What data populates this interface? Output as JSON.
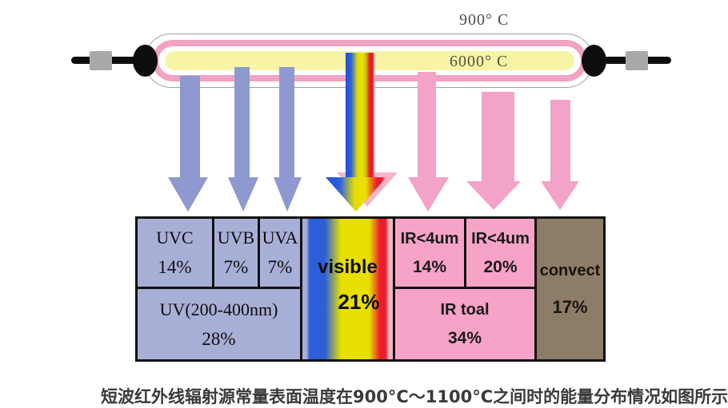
{
  "lamp": {
    "outer_temp": "900° C",
    "core_temp": "6000° C",
    "colors": {
      "envelope_pink": "#f2a2c4",
      "core_yellow": "#f8f4a6",
      "outline_gray": "#a0a0a0",
      "electrode_black": "#0d0d0d",
      "connector_gray": "#a9a9a9"
    }
  },
  "arrows": {
    "uv_color": "#8e99cf",
    "ir_color": "#f2a3c7",
    "visible_gradient": [
      "#2050d5",
      "#e8e100",
      "#ee1b2d",
      "#f4b6c6"
    ]
  },
  "table": {
    "uvc": {
      "label": "UVC",
      "value": "14%"
    },
    "uvb": {
      "label": "UVB",
      "value": "7%"
    },
    "uva": {
      "label": "UVA",
      "value": "7%"
    },
    "uv_total": {
      "label": "UV(200-400nm)",
      "value": "28%"
    },
    "visible": {
      "label": "visible",
      "value": "21%"
    },
    "ir_a": {
      "label": "IR<4um",
      "value": "14%"
    },
    "ir_b": {
      "label": "IR<4um",
      "value": "20%"
    },
    "ir_total": {
      "label": "IR toal",
      "value": "34%"
    },
    "convect": {
      "label": "convect",
      "value": "17%"
    },
    "section_colors": {
      "uv_bg": "#a8afd7",
      "ir_bg": "#f6a3c7",
      "convect_bg": "#8c7c68"
    }
  },
  "caption_cropped": "短波红外线辐射源常量表面温度在900°C～1100°C之间时的能量分布情况如图所示"
}
